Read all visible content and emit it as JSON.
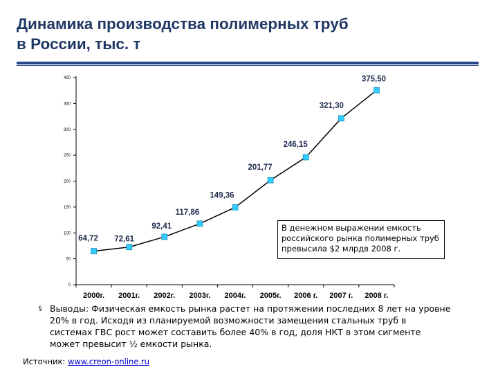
{
  "slide": {
    "title_line1": "Динамика производства полимерных труб",
    "title_line2": "в России, тыс. т",
    "accent_color": "#24458c",
    "title_color": "#1f3864"
  },
  "chart_data": {
    "type": "line",
    "title": "",
    "xlabel": "",
    "ylabel": "",
    "categories": [
      "2000г.",
      "2001г.",
      "2002г.",
      "2003г.",
      "2004г.",
      "2005г.",
      "2006 г.",
      "2007 г.",
      "2008 г."
    ],
    "series": [
      {
        "values": [
          64.72,
          72.61,
          92.41,
          117.86,
          149.36,
          201.77,
          246.15,
          321.3,
          375.5
        ],
        "labels": [
          "64,72",
          "72,61",
          "92,41",
          "117,86",
          "149,36",
          "201,77",
          "246,15",
          "321,30",
          "375,50"
        ],
        "color": "#000000",
        "marker_color": "#33ccff"
      }
    ],
    "ylim": [
      0,
      400
    ],
    "yticks": [
      0,
      50,
      100,
      150,
      200,
      250,
      300,
      350,
      400
    ],
    "grid": false,
    "legend": "none"
  },
  "callout": {
    "text": "В денежном выражении емкость российского рынка полимерных труб превысила $2 млрдв 2008 г."
  },
  "conclusion": {
    "bullet": "§",
    "text": "Выводы: Физическая емкость рынка растет на протяжении последних 8 лет на уровне 20% в год. Исходя из планируемой возможности замещения стальных труб в системах ГВС рост может составить более 40% в год, доля НКТ в этом сигменте может превысит ½ емкости рынка."
  },
  "source": {
    "label": "Источник:",
    "link_text": "www.creon-online.ru"
  }
}
